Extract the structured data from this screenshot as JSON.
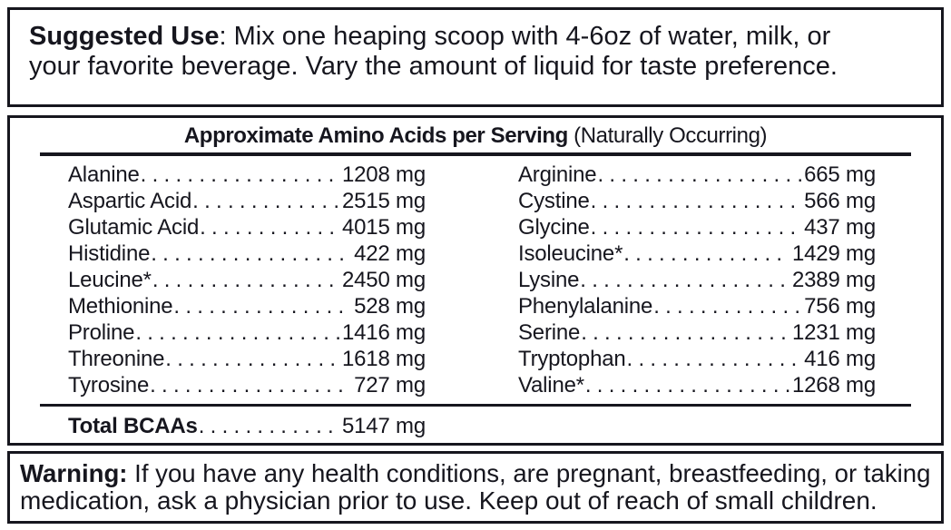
{
  "suggested_use": {
    "label": "Suggested Use",
    "line1_rest": ": Mix one heaping scoop with 4-6oz of water, milk, or",
    "line2": "your favorite beverage. Vary the amount of liquid for taste preference."
  },
  "amino_table": {
    "title_bold": "Approximate Amino Acids per Serving",
    "title_normal": " (Naturally Occurring)",
    "left_column": [
      {
        "name": "Alanine",
        "value": "1208 mg"
      },
      {
        "name": "Aspartic Acid",
        "value": "2515 mg"
      },
      {
        "name": "Glutamic Acid",
        "value": "4015 mg"
      },
      {
        "name": "Histidine",
        "value": "422 mg"
      },
      {
        "name": "Leucine*",
        "value": "2450 mg"
      },
      {
        "name": "Methionine",
        "value": "528 mg"
      },
      {
        "name": "Proline",
        "value": "1416 mg"
      },
      {
        "name": "Threonine",
        "value": "1618 mg"
      },
      {
        "name": "Tyrosine",
        "value": "727 mg"
      }
    ],
    "right_column": [
      {
        "name": "Arginine",
        "value": "665 mg"
      },
      {
        "name": "Cystine",
        "value": "566 mg"
      },
      {
        "name": "Glycine",
        "value": "437 mg"
      },
      {
        "name": "Isoleucine*",
        "value": "1429 mg"
      },
      {
        "name": "Lysine",
        "value": "2389 mg"
      },
      {
        "name": "Phenylalanine",
        "value": "756 mg"
      },
      {
        "name": "Serine",
        "value": "1231 mg"
      },
      {
        "name": "Tryptophan",
        "value": "416 mg"
      },
      {
        "name": "Valine*",
        "value": "1268 mg"
      }
    ],
    "total": {
      "name": "Total BCAAs",
      "value": "5147 mg"
    }
  },
  "warning": {
    "label": "Warning:",
    "line1_rest": " If you have any health conditions, are pregnant, breastfeeding, or taking",
    "line2": "medication, ask a physician prior to use. Keep out of reach of small children."
  },
  "colors": {
    "ink": "#16161e",
    "background": "#ffffff"
  }
}
